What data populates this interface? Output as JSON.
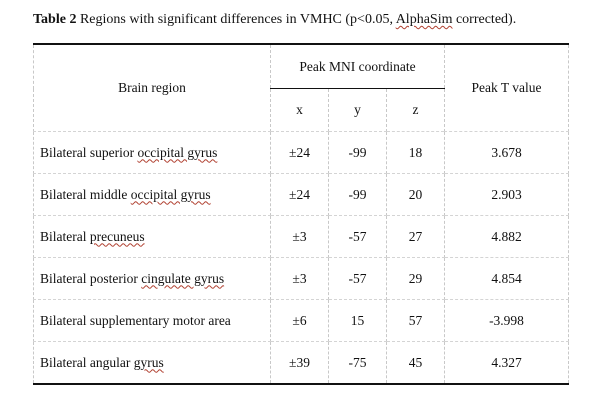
{
  "caption": {
    "label": "Table 2",
    "text_pre": " Regions with significant differences in VMHC (p<0.05, ",
    "text_marked": "AlphaSim",
    "text_post": " corrected)."
  },
  "header": {
    "region": "Brain region",
    "coordinate_group": "Peak MNI coordinate",
    "x": "x",
    "y": "y",
    "z": "z",
    "peak_t": "Peak T value"
  },
  "rows": [
    {
      "region_pre": "Bilateral superior ",
      "region_marked": "occipital gyrus",
      "region_post": "",
      "x": "±24",
      "y": "-99",
      "z": "18",
      "t": "3.678"
    },
    {
      "region_pre": "Bilateral middle ",
      "region_marked": "occipital gyrus",
      "region_post": "",
      "x": "±24",
      "y": "-99",
      "z": "20",
      "t": "2.903"
    },
    {
      "region_pre": "Bilateral ",
      "region_marked": "precuneus",
      "region_post": "",
      "x": "±3",
      "y": "-57",
      "z": "27",
      "t": "4.882"
    },
    {
      "region_pre": "Bilateral posterior ",
      "region_marked": "cingulate gyrus",
      "region_post": "",
      "x": "±3",
      "y": "-57",
      "z": "29",
      "t": "4.854"
    },
    {
      "region_pre": "Bilateral supplementary motor area",
      "region_marked": "",
      "region_post": "",
      "x": "±6",
      "y": "15",
      "z": "57",
      "t": "-3.998"
    },
    {
      "region_pre": "Bilateral angular ",
      "region_marked": "gyrus",
      "region_post": "",
      "x": "±39",
      "y": "-75",
      "z": "45",
      "t": "4.327"
    }
  ]
}
